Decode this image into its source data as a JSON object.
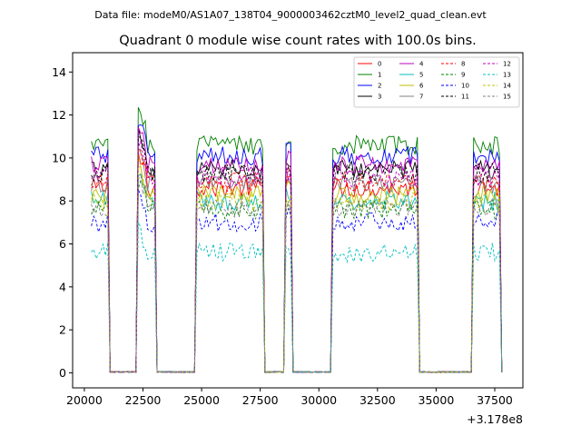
{
  "suptitle": "Data file: modeM0/AS1A07_138T04_9000003462cztM0_level2_quad_clean.evt",
  "chart_data": {
    "type": "line",
    "title": "Quadrant 0 module wise count rates with 100.0s bins.",
    "xlabel": "",
    "ylabel": "",
    "x_offset_label": "+3.178e8",
    "xlim": [
      19500,
      38700
    ],
    "ylim": [
      -0.7,
      14.9
    ],
    "xticks": [
      20000,
      22500,
      25000,
      27500,
      30000,
      32500,
      35000,
      37500
    ],
    "xtick_labels": [
      "20000",
      "22500",
      "25000",
      "27500",
      "30000",
      "32500",
      "35000",
      "37500"
    ],
    "yticks": [
      0,
      2,
      4,
      6,
      8,
      10,
      12,
      14
    ],
    "ytick_labels": [
      "0",
      "2",
      "4",
      "6",
      "8",
      "10",
      "12",
      "14"
    ],
    "grid": false,
    "legend": {
      "placement": "top-right",
      "columns": 4
    },
    "bin_seconds": 100,
    "x_start": 20300,
    "x_end": 37800,
    "on_intervals": [
      [
        20300,
        21000
      ],
      [
        22300,
        23000
      ],
      [
        24800,
        27600
      ],
      [
        28600,
        28800
      ],
      [
        30600,
        34200
      ],
      [
        36600,
        37700
      ]
    ],
    "series": [
      {
        "name": "0",
        "color": "#ff0000",
        "dash": false,
        "mean_rate": 8.6
      },
      {
        "name": "1",
        "color": "#008000",
        "dash": false,
        "mean_rate": 10.6
      },
      {
        "name": "2",
        "color": "#0000ff",
        "dash": false,
        "mean_rate": 10.1
      },
      {
        "name": "3",
        "color": "#000000",
        "dash": false,
        "mean_rate": 9.5
      },
      {
        "name": "4",
        "color": "#bf00bf",
        "dash": false,
        "mean_rate": 9.7
      },
      {
        "name": "5",
        "color": "#00bfbf",
        "dash": false,
        "mean_rate": 8.0
      },
      {
        "name": "6",
        "color": "#bfbf00",
        "dash": false,
        "mean_rate": 8.3
      },
      {
        "name": "7",
        "color": "#808080",
        "dash": false,
        "mean_rate": 8.8
      },
      {
        "name": "8",
        "color": "#ff0000",
        "dash": true,
        "mean_rate": 8.9
      },
      {
        "name": "9",
        "color": "#008000",
        "dash": true,
        "mean_rate": 7.6
      },
      {
        "name": "10",
        "color": "#0000ff",
        "dash": true,
        "mean_rate": 7.0
      },
      {
        "name": "11",
        "color": "#000000",
        "dash": true,
        "mean_rate": 9.3
      },
      {
        "name": "12",
        "color": "#bf00bf",
        "dash": true,
        "mean_rate": 9.1
      },
      {
        "name": "13",
        "color": "#00bfbf",
        "dash": true,
        "mean_rate": 5.6
      },
      {
        "name": "14",
        "color": "#bfbf00",
        "dash": true,
        "mean_rate": 8.0
      },
      {
        "name": "15",
        "color": "#808080",
        "dash": true,
        "mean_rate": 7.7
      }
    ]
  }
}
